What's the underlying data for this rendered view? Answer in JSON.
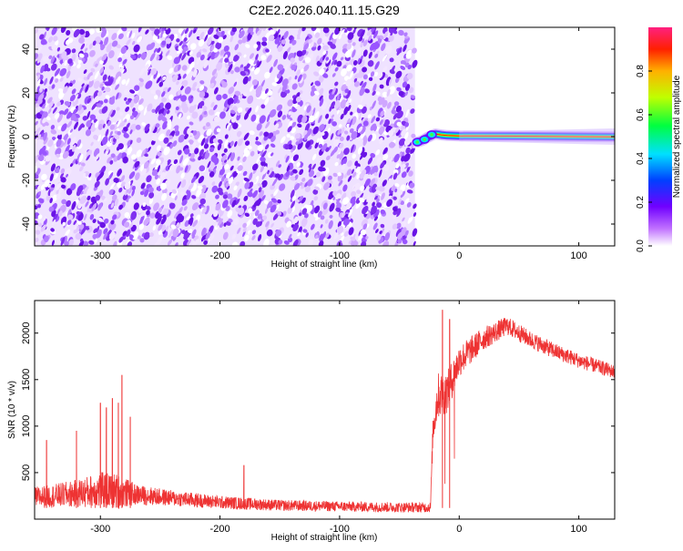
{
  "title": "C2E2.2026.040.11.15.G29",
  "chart_data": [
    {
      "type": "heatmap",
      "title": "C2E2.2026.040.11.15.G29",
      "xlabel": "Height of straight line (km)",
      "ylabel": "Frequency (Hz)",
      "xlim": [
        -355,
        130
      ],
      "ylim": [
        -50,
        50
      ],
      "xticks": [
        -300,
        -200,
        -100,
        0,
        100
      ],
      "xtick_labels": [
        "-300",
        "-200",
        "-100",
        "0",
        "100"
      ],
      "yticks": [
        -40,
        -20,
        0,
        20,
        40
      ],
      "ytick_labels": [
        "-40",
        "-20",
        "0",
        "20",
        "40"
      ],
      "noise_region_x": [
        -355,
        -37
      ],
      "signal_track": [
        {
          "x": -35,
          "f": -2.5
        },
        {
          "x": -32,
          "f": -2.0
        },
        {
          "x": -30,
          "f": -1.5
        },
        {
          "x": -27,
          "f": -0.5
        },
        {
          "x": -25,
          "f": 0.0
        },
        {
          "x": -22,
          "f": 0.8
        },
        {
          "x": -20,
          "f": 1.2
        },
        {
          "x": -15,
          "f": 0.8
        },
        {
          "x": -10,
          "f": 0.5
        },
        {
          "x": 0,
          "f": 0.3
        },
        {
          "x": 50,
          "f": 0.2
        },
        {
          "x": 100,
          "f": 0.0
        },
        {
          "x": 130,
          "f": -0.1
        }
      ],
      "colorbar": {
        "label": "Normalized spectral amplitude",
        "range": [
          0,
          1
        ],
        "ticks": [
          0.0,
          0.2,
          0.4,
          0.6,
          0.8
        ],
        "tick_labels": [
          "0.0",
          "0.2",
          "0.4",
          "0.6",
          "0.8"
        ],
        "colormap": "rainbow"
      }
    },
    {
      "type": "line",
      "xlabel": "Height of straight line (km)",
      "ylabel": "SNR (10 * v/v)",
      "xlim": [
        -355,
        130
      ],
      "ylim": [
        0,
        2350
      ],
      "xticks": [
        -300,
        -200,
        -100,
        0,
        100
      ],
      "xtick_labels": [
        "-300",
        "-200",
        "-100",
        "0",
        "100"
      ],
      "yticks": [
        500,
        1000,
        1500,
        2000
      ],
      "ytick_labels": [
        "500",
        "1000",
        "1500",
        "2000"
      ],
      "line_color": "#ee3333",
      "envelope": [
        {
          "x": -355,
          "base": 200,
          "spread": 230
        },
        {
          "x": -340,
          "base": 210,
          "spread": 250
        },
        {
          "x": -320,
          "base": 230,
          "spread": 300
        },
        {
          "x": -300,
          "base": 250,
          "spread": 400
        },
        {
          "x": -285,
          "base": 240,
          "spread": 380
        },
        {
          "x": -270,
          "base": 230,
          "spread": 220
        },
        {
          "x": -240,
          "base": 200,
          "spread": 170
        },
        {
          "x": -200,
          "base": 160,
          "spread": 140
        },
        {
          "x": -150,
          "base": 130,
          "spread": 120
        },
        {
          "x": -100,
          "base": 120,
          "spread": 110
        },
        {
          "x": -50,
          "base": 110,
          "spread": 110
        },
        {
          "x": -24,
          "base": 110,
          "spread": 110
        },
        {
          "x": -22,
          "base": 900,
          "spread": 300
        },
        {
          "x": -18,
          "base": 1250,
          "spread": 500
        },
        {
          "x": -10,
          "base": 1300,
          "spread": 450
        },
        {
          "x": 0,
          "base": 1650,
          "spread": 350
        },
        {
          "x": 20,
          "base": 1900,
          "spread": 250
        },
        {
          "x": 40,
          "base": 2050,
          "spread": 200
        },
        {
          "x": 60,
          "base": 1900,
          "spread": 180
        },
        {
          "x": 80,
          "base": 1780,
          "spread": 170
        },
        {
          "x": 100,
          "base": 1680,
          "spread": 160
        },
        {
          "x": 130,
          "base": 1560,
          "spread": 150
        }
      ],
      "spikes": [
        {
          "x": -345,
          "y": 850
        },
        {
          "x": -320,
          "y": 950
        },
        {
          "x": -300,
          "y": 1250
        },
        {
          "x": -295,
          "y": 1200
        },
        {
          "x": -290,
          "y": 1300
        },
        {
          "x": -285,
          "y": 1250
        },
        {
          "x": -282,
          "y": 1550
        },
        {
          "x": -275,
          "y": 1100
        },
        {
          "x": -180,
          "y": 580
        },
        {
          "x": -14,
          "y": 2250
        },
        {
          "x": -8,
          "y": 2150
        }
      ],
      "dips": [
        {
          "x": -12,
          "y": 380
        },
        {
          "x": -4,
          "y": 650
        }
      ]
    }
  ]
}
